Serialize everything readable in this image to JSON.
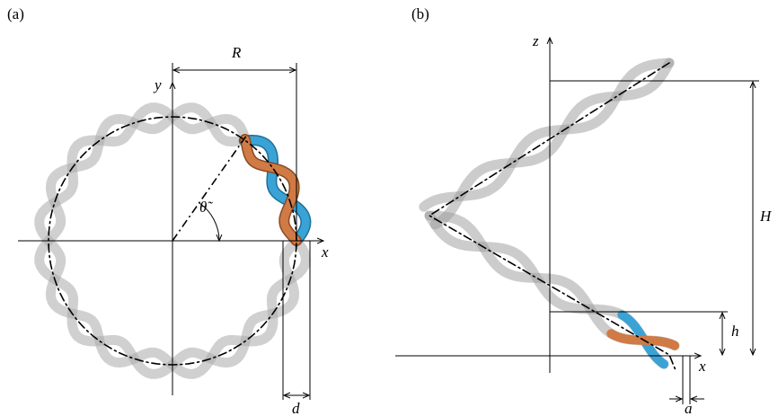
{
  "panel_a": {
    "label": "(a)",
    "axis_x": "x",
    "axis_y": "y",
    "radius_label": "R",
    "angle_label": "θ̃",
    "diameter_label": "d"
  },
  "panel_b": {
    "label": "(b)",
    "axis_x": "x",
    "axis_z": "z",
    "height_label": "H",
    "pitch_label": "h",
    "offset_label": "a"
  }
}
